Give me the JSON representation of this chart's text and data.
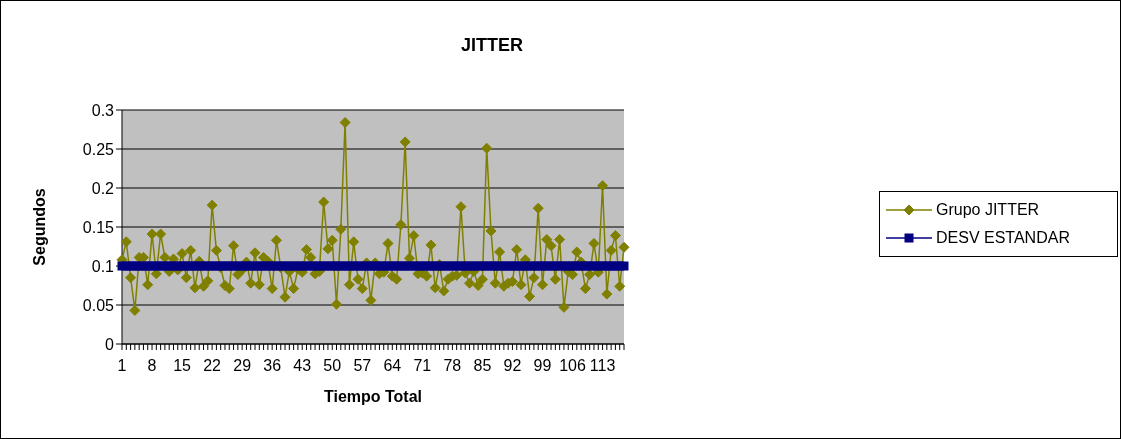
{
  "chart_data": {
    "type": "line",
    "title": "JITTER",
    "xlabel": "Tiempo Total",
    "ylabel": "Segundos",
    "categories": [
      "1",
      null,
      null,
      null,
      null,
      null,
      null,
      "8",
      null,
      null,
      null,
      null,
      null,
      null,
      "15",
      null,
      null,
      null,
      null,
      null,
      null,
      "22",
      null,
      null,
      null,
      null,
      null,
      null,
      "29",
      null,
      null,
      null,
      null,
      null,
      null,
      "36",
      null,
      null,
      null,
      null,
      null,
      null,
      "43",
      null,
      null,
      null,
      null,
      null,
      null,
      "50",
      null,
      null,
      null,
      null,
      null,
      null,
      "57",
      null,
      null,
      null,
      null,
      null,
      null,
      "64",
      null,
      null,
      null,
      null,
      null,
      null,
      "71",
      null,
      null,
      null,
      null,
      null,
      null,
      "78",
      null,
      null,
      null,
      null,
      null,
      null,
      "85",
      null,
      null,
      null,
      null,
      null,
      null,
      "92",
      null,
      null,
      null,
      null,
      null,
      null,
      "99",
      null,
      null,
      null,
      null,
      null,
      null,
      "106",
      null,
      null,
      null,
      null,
      null,
      null,
      "113",
      null,
      null,
      null,
      null,
      null
    ],
    "series": [
      {
        "name": "Grupo JITTER",
        "color": "#808000",
        "marker": "diamond",
        "values": [
          0.108,
          0.131,
          0.085,
          0.043,
          0.111,
          0.111,
          0.076,
          0.141,
          0.09,
          0.141,
          0.111,
          0.093,
          0.109,
          0.095,
          0.116,
          0.085,
          0.12,
          0.072,
          0.106,
          0.074,
          0.081,
          0.178,
          0.12,
          0.098,
          0.075,
          0.071,
          0.126,
          0.089,
          0.095,
          0.105,
          0.078,
          0.117,
          0.076,
          0.111,
          0.106,
          0.071,
          0.133,
          0.098,
          0.06,
          0.093,
          0.071,
          0.096,
          0.092,
          0.121,
          0.111,
          0.09,
          0.093,
          0.182,
          0.122,
          0.133,
          0.051,
          0.147,
          0.284,
          0.076,
          0.131,
          0.083,
          0.071,
          0.104,
          0.056,
          0.104,
          0.09,
          0.092,
          0.129,
          0.087,
          0.083,
          0.153,
          0.259,
          0.11,
          0.139,
          0.09,
          0.091,
          0.087,
          0.127,
          0.072,
          0.102,
          0.068,
          0.083,
          0.087,
          0.088,
          0.176,
          0.091,
          0.078,
          0.093,
          0.075,
          0.083,
          0.251,
          0.145,
          0.078,
          0.118,
          0.074,
          0.078,
          0.08,
          0.121,
          0.076,
          0.108,
          0.061,
          0.085,
          0.174,
          0.076,
          0.134,
          0.126,
          0.083,
          0.134,
          0.047,
          0.093,
          0.089,
          0.118,
          0.105,
          0.071,
          0.089,
          0.129,
          0.092,
          0.203,
          0.064,
          0.12,
          0.139,
          0.074,
          0.124
        ]
      },
      {
        "name": "DESV ESTANDAR",
        "color": "#000080",
        "marker": "square",
        "values": [
          0.1,
          0.1,
          0.1,
          0.1,
          0.1,
          0.1,
          0.1,
          0.1,
          0.1,
          0.1,
          0.1,
          0.1,
          0.1,
          0.1,
          0.1,
          0.1,
          0.1,
          0.1,
          0.1,
          0.1,
          0.1,
          0.1,
          0.1,
          0.1,
          0.1,
          0.1,
          0.1,
          0.1,
          0.1,
          0.1,
          0.1,
          0.1,
          0.1,
          0.1,
          0.1,
          0.1,
          0.1,
          0.1,
          0.1,
          0.1,
          0.1,
          0.1,
          0.1,
          0.1,
          0.1,
          0.1,
          0.1,
          0.1,
          0.1,
          0.1,
          0.1,
          0.1,
          0.1,
          0.1,
          0.1,
          0.1,
          0.1,
          0.1,
          0.1,
          0.1,
          0.1,
          0.1,
          0.1,
          0.1,
          0.1,
          0.1,
          0.1,
          0.1,
          0.1,
          0.1,
          0.1,
          0.1,
          0.1,
          0.1,
          0.1,
          0.1,
          0.1,
          0.1,
          0.1,
          0.1,
          0.1,
          0.1,
          0.1,
          0.1,
          0.1,
          0.1,
          0.1,
          0.1,
          0.1,
          0.1,
          0.1,
          0.1,
          0.1,
          0.1,
          0.1,
          0.1,
          0.1,
          0.1,
          0.1,
          0.1,
          0.1,
          0.1,
          0.1,
          0.1,
          0.1,
          0.1,
          0.1,
          0.1,
          0.1,
          0.1,
          0.1,
          0.1,
          0.1,
          0.1,
          0.1,
          0.1,
          0.1,
          0.1
        ]
      }
    ],
    "ylim": [
      0,
      0.3
    ],
    "yticks": [
      0,
      0.05,
      0.1,
      0.15,
      0.2,
      0.25,
      0.3
    ],
    "grid": "y",
    "legend": "right"
  }
}
